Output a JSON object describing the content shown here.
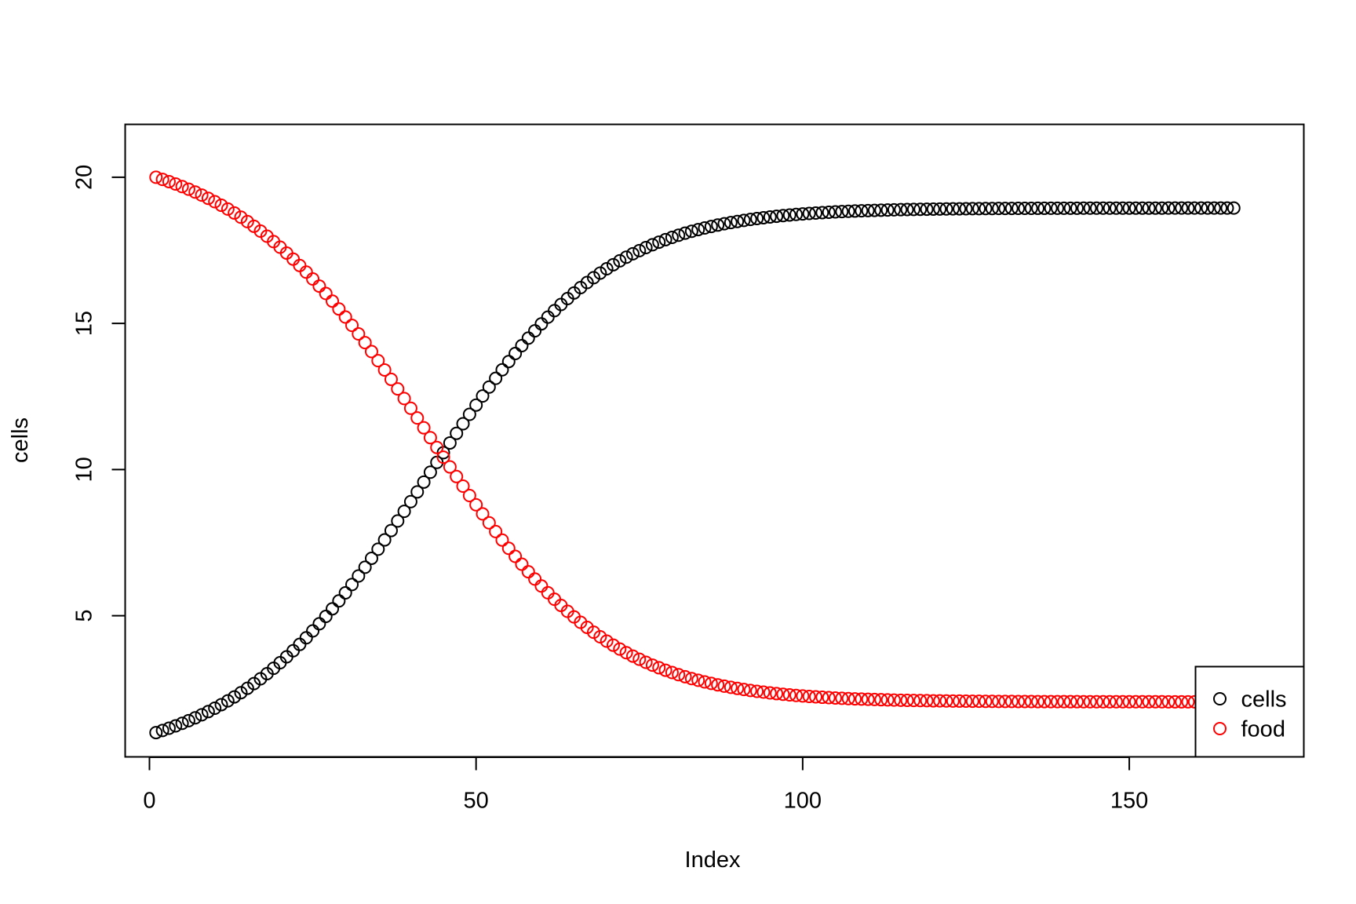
{
  "chart_data": {
    "type": "scatter",
    "title": "",
    "xlabel": "Index",
    "ylabel": "cells",
    "xlim": [
      -3.72,
      176.72
    ],
    "ylim": [
      0.17,
      21.81
    ],
    "x_ticks": [
      0,
      50,
      100,
      150
    ],
    "y_ticks": [
      5,
      10,
      15,
      20
    ],
    "x_tick_labels": [
      "0",
      "50",
      "100",
      "150"
    ],
    "y_tick_labels": [
      "5",
      "10",
      "15",
      "20"
    ],
    "grid": false,
    "marker": "open-circle",
    "legend": {
      "position": "bottom-right",
      "entries": [
        "cells",
        "food"
      ]
    },
    "series": [
      {
        "name": "cells",
        "color": "#000000",
        "x_start": 1,
        "x_step": 1,
        "values": [
          1.0,
          1.072,
          1.149,
          1.23,
          1.317,
          1.409,
          1.506,
          1.61,
          1.719,
          1.835,
          1.957,
          2.086,
          2.222,
          2.366,
          2.517,
          2.676,
          2.842,
          3.017,
          3.2,
          3.392,
          3.592,
          3.8,
          4.018,
          4.244,
          4.479,
          4.723,
          4.975,
          5.236,
          5.505,
          5.782,
          6.067,
          6.359,
          6.658,
          6.964,
          7.275,
          7.592,
          7.914,
          8.24,
          8.57,
          8.902,
          9.236,
          9.572,
          9.908,
          10.244,
          10.578,
          10.911,
          11.24,
          11.567,
          11.889,
          12.206,
          12.517,
          12.823,
          13.121,
          13.412,
          13.696,
          13.971,
          14.238,
          14.496,
          14.745,
          14.985,
          15.215,
          15.436,
          15.647,
          15.849,
          16.042,
          16.225,
          16.399,
          16.565,
          16.721,
          16.869,
          17.009,
          17.141,
          17.265,
          17.382,
          17.491,
          17.594,
          17.691,
          17.781,
          17.865,
          17.944,
          18.018,
          18.087,
          18.151,
          18.21,
          18.266,
          18.317,
          18.365,
          18.41,
          18.451,
          18.489,
          18.525,
          18.558,
          18.588,
          18.616,
          18.643,
          18.667,
          18.689,
          18.71,
          18.729,
          18.746,
          18.762,
          18.777,
          18.791,
          18.804,
          18.815,
          18.826,
          18.836,
          18.845,
          18.854,
          18.861,
          18.868,
          18.875,
          18.881,
          18.887,
          18.892,
          18.896,
          18.901,
          18.905,
          18.908,
          18.912,
          18.915,
          18.917,
          18.92,
          18.922,
          18.924,
          18.926,
          18.928,
          18.93,
          18.931,
          18.933,
          18.934,
          18.935,
          18.936,
          18.937,
          18.938,
          18.939,
          18.939,
          18.94,
          18.941,
          18.941,
          18.942,
          18.942,
          18.943,
          18.943,
          18.943,
          18.944,
          18.944,
          18.944,
          18.944,
          18.945,
          18.945,
          18.945,
          18.945,
          18.945,
          18.945,
          18.946,
          18.946,
          18.946,
          18.946,
          18.946,
          18.946,
          18.946,
          18.946,
          18.946,
          18.946,
          18.946
        ]
      },
      {
        "name": "food",
        "color": "#ff0000",
        "x_start": 1,
        "x_step": 1,
        "values": [
          20.0,
          19.928,
          19.851,
          19.77,
          19.683,
          19.591,
          19.494,
          19.39,
          19.281,
          19.165,
          19.043,
          18.914,
          18.778,
          18.634,
          18.483,
          18.324,
          18.158,
          17.983,
          17.8,
          17.608,
          17.408,
          17.2,
          16.982,
          16.756,
          16.521,
          16.277,
          16.025,
          15.764,
          15.495,
          15.218,
          14.933,
          14.641,
          14.342,
          14.036,
          13.725,
          13.408,
          13.086,
          12.76,
          12.43,
          12.098,
          11.764,
          11.428,
          11.092,
          10.756,
          10.422,
          10.089,
          9.76,
          9.433,
          9.111,
          8.794,
          8.483,
          8.177,
          7.879,
          7.588,
          7.304,
          7.029,
          6.762,
          6.504,
          6.255,
          6.015,
          5.785,
          5.564,
          5.353,
          5.151,
          4.958,
          4.775,
          4.601,
          4.435,
          4.279,
          4.131,
          3.991,
          3.859,
          3.735,
          3.618,
          3.509,
          3.406,
          3.309,
          3.219,
          3.135,
          3.056,
          2.982,
          2.913,
          2.849,
          2.79,
          2.734,
          2.683,
          2.635,
          2.59,
          2.549,
          2.511,
          2.475,
          2.442,
          2.412,
          2.384,
          2.357,
          2.333,
          2.311,
          2.29,
          2.271,
          2.254,
          2.238,
          2.223,
          2.209,
          2.196,
          2.185,
          2.174,
          2.164,
          2.155,
          2.146,
          2.139,
          2.132,
          2.125,
          2.119,
          2.113,
          2.108,
          2.104,
          2.099,
          2.095,
          2.092,
          2.088,
          2.085,
          2.083,
          2.08,
          2.078,
          2.076,
          2.074,
          2.072,
          2.07,
          2.069,
          2.067,
          2.066,
          2.065,
          2.064,
          2.063,
          2.062,
          2.061,
          2.061,
          2.06,
          2.059,
          2.059,
          2.058,
          2.058,
          2.057,
          2.057,
          2.057,
          2.056,
          2.056,
          2.056,
          2.056,
          2.055,
          2.055,
          2.055,
          2.055,
          2.055,
          2.055,
          2.054,
          2.054,
          2.054,
          2.054,
          2.054,
          2.054,
          2.054,
          2.054,
          2.054,
          2.054,
          2.054
        ]
      }
    ]
  }
}
